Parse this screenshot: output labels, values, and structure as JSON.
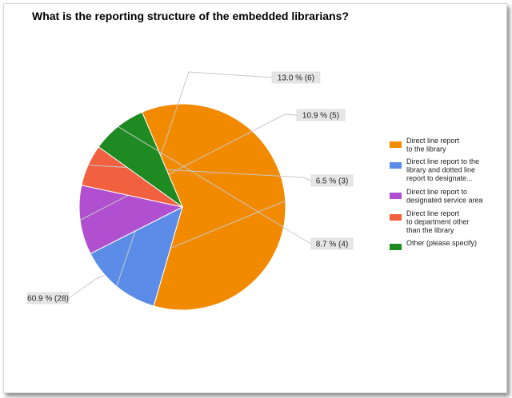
{
  "title": "What is the reporting structure of the embedded librarians?",
  "chart_data": {
    "type": "pie",
    "title": "What is the reporting structure of the embedded librarians?",
    "legend_position": "right",
    "slices": [
      {
        "legend": "Direct line report to the library",
        "value": 28,
        "percent": 60.9,
        "label": "60.9 % (28)",
        "color": "#f28a00"
      },
      {
        "legend": "Direct line report to the library and dotted line report to designate...",
        "value": 6,
        "percent": 13.0,
        "label": "13.0 % (6)",
        "color": "#5b8de8"
      },
      {
        "legend": "Direct line report to designated service area",
        "value": 5,
        "percent": 10.9,
        "label": "10.9 % (5)",
        "color": "#b04fcf"
      },
      {
        "legend": "Direct line report to department other than the library",
        "value": 3,
        "percent": 6.5,
        "label": "6.5 % (3)",
        "color": "#f2613f"
      },
      {
        "legend": "Other (please specify)",
        "value": 4,
        "percent": 8.7,
        "label": "8.7 % (4)",
        "color": "#1f8a22"
      }
    ]
  }
}
